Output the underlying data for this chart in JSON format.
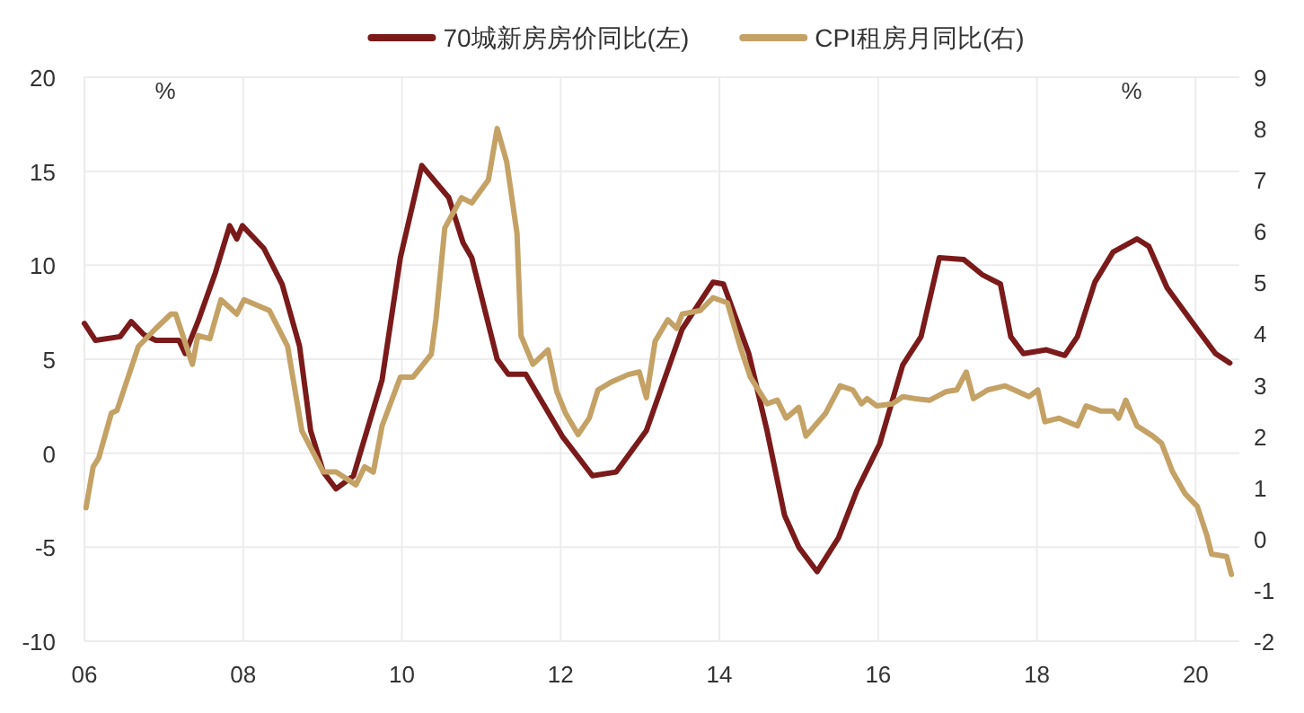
{
  "chart_data": {
    "type": "line",
    "legend": "top",
    "grid": true,
    "xlim": [
      2006,
      2020.55
    ],
    "xticks": [
      {
        "value": 2006,
        "label": "06"
      },
      {
        "value": 2008,
        "label": "08"
      },
      {
        "value": 2010,
        "label": "10"
      },
      {
        "value": 2012,
        "label": "12"
      },
      {
        "value": 2014,
        "label": "14"
      },
      {
        "value": 2016,
        "label": "16"
      },
      {
        "value": 2018,
        "label": "18"
      },
      {
        "value": 2020,
        "label": "20"
      }
    ],
    "ylim": [
      -10,
      20
    ],
    "yticks": [
      -10,
      -5,
      0,
      5,
      10,
      15,
      20
    ],
    "y2lim": [
      -2,
      9
    ],
    "y2ticks": [
      -2,
      -1,
      0,
      1,
      2,
      3,
      4,
      5,
      6,
      7,
      8,
      9
    ],
    "annotations": [
      "%",
      "%"
    ],
    "series": [
      {
        "name": "70城新房房价同比(左)",
        "color": "#7b1a1a",
        "x": [
          2006.0,
          2006.14,
          2006.45,
          2006.59,
          2006.75,
          2006.9,
          2007.19,
          2007.27,
          2007.43,
          2007.65,
          2007.83,
          2007.92,
          2007.99,
          2008.26,
          2008.49,
          2008.71,
          2008.85,
          2009.01,
          2009.17,
          2009.39,
          2009.75,
          2009.98,
          2010.25,
          2010.59,
          2010.77,
          2010.88,
          2011.2,
          2011.34,
          2011.56,
          2012.02,
          2012.4,
          2012.7,
          2013.08,
          2013.53,
          2013.92,
          2014.05,
          2014.37,
          2014.6,
          2014.82,
          2015.0,
          2015.23,
          2015.5,
          2015.73,
          2016.02,
          2016.31,
          2016.54,
          2016.77,
          2017.08,
          2017.31,
          2017.54,
          2017.67,
          2017.83,
          2018.12,
          2018.35,
          2018.51,
          2018.73,
          2018.96,
          2019.26,
          2019.41,
          2019.64,
          2020.02,
          2020.25,
          2020.43
        ],
        "values": [
          6.9,
          6.0,
          6.2,
          7.0,
          6.3,
          6.0,
          6.0,
          5.3,
          7.0,
          9.6,
          12.1,
          11.4,
          12.1,
          10.9,
          9.0,
          5.7,
          1.2,
          -1.0,
          -1.9,
          -1.2,
          3.9,
          10.4,
          15.3,
          13.6,
          11.2,
          10.4,
          5.0,
          4.2,
          4.2,
          0.9,
          -1.2,
          -1.0,
          1.2,
          6.6,
          9.1,
          9.0,
          5.3,
          1.2,
          -3.3,
          -5.0,
          -6.3,
          -4.5,
          -2.0,
          0.5,
          4.7,
          6.2,
          10.4,
          10.3,
          9.5,
          9.0,
          6.2,
          5.3,
          5.5,
          5.2,
          6.2,
          9.1,
          10.7,
          11.4,
          11.0,
          8.8,
          6.6,
          5.3,
          4.8
        ]
      },
      {
        "name": "CPI租房月同比(右)",
        "color": "#c4a265",
        "axis": "y2",
        "x": [
          2006.02,
          2006.11,
          2006.18,
          2006.34,
          2006.41,
          2006.68,
          2006.9,
          2007.09,
          2007.15,
          2007.36,
          2007.43,
          2007.58,
          2007.72,
          2007.92,
          2008.01,
          2008.33,
          2008.56,
          2008.74,
          2009.01,
          2009.17,
          2009.42,
          2009.53,
          2009.64,
          2009.75,
          2009.98,
          2010.14,
          2010.37,
          2010.43,
          2010.54,
          2010.75,
          2010.88,
          2011.09,
          2011.2,
          2011.32,
          2011.45,
          2011.5,
          2011.65,
          2011.84,
          2011.95,
          2012.06,
          2012.22,
          2012.36,
          2012.47,
          2012.63,
          2012.85,
          2012.99,
          2013.08,
          2013.19,
          2013.35,
          2013.46,
          2013.53,
          2013.76,
          2013.92,
          2014.1,
          2014.26,
          2014.39,
          2014.6,
          2014.73,
          2014.84,
          2015.0,
          2015.09,
          2015.34,
          2015.52,
          2015.68,
          2015.79,
          2015.86,
          2015.98,
          2016.18,
          2016.31,
          2016.47,
          2016.65,
          2016.86,
          2016.99,
          2017.11,
          2017.2,
          2017.38,
          2017.6,
          2017.76,
          2017.9,
          2018.01,
          2018.1,
          2018.28,
          2018.51,
          2018.62,
          2018.8,
          2018.96,
          2019.03,
          2019.12,
          2019.26,
          2019.46,
          2019.57,
          2019.71,
          2019.87,
          2020.02,
          2020.14,
          2020.2,
          2020.39,
          2020.45
        ],
        "values": [
          0.6,
          1.4,
          1.57,
          2.45,
          2.5,
          3.75,
          4.1,
          4.38,
          4.38,
          3.4,
          3.96,
          3.9,
          4.66,
          4.38,
          4.66,
          4.45,
          3.75,
          2.1,
          1.3,
          1.3,
          1.05,
          1.4,
          1.3,
          2.2,
          3.15,
          3.15,
          3.6,
          4.3,
          6.06,
          6.65,
          6.55,
          7.0,
          8.0,
          7.35,
          5.95,
          3.96,
          3.4,
          3.68,
          2.87,
          2.45,
          2.03,
          2.35,
          2.9,
          3.05,
          3.2,
          3.25,
          2.75,
          3.85,
          4.27,
          4.1,
          4.38,
          4.45,
          4.7,
          4.6,
          3.75,
          3.15,
          2.63,
          2.7,
          2.35,
          2.56,
          2.0,
          2.45,
          2.98,
          2.9,
          2.63,
          2.73,
          2.59,
          2.63,
          2.77,
          2.73,
          2.7,
          2.87,
          2.9,
          3.25,
          2.73,
          2.9,
          2.98,
          2.87,
          2.77,
          2.9,
          2.28,
          2.35,
          2.2,
          2.59,
          2.49,
          2.49,
          2.35,
          2.7,
          2.2,
          2.0,
          1.86,
          1.3,
          0.87,
          0.63,
          0.07,
          -0.3,
          -0.35,
          -0.7
        ]
      }
    ]
  }
}
